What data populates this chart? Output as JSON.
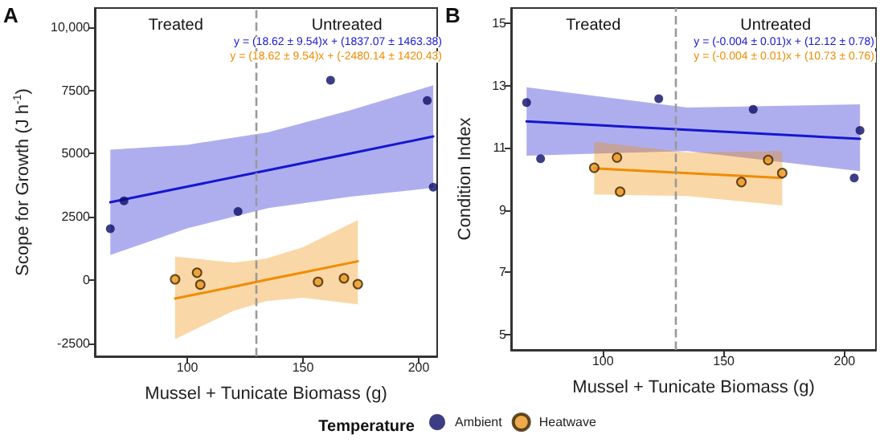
{
  "chart_data": [
    {
      "type": "scatter",
      "title": "A",
      "xlabel": "Mussel + Tunicate Biomass (g)",
      "ylabel": "Scope for Growth (J h$^{-1}$)",
      "legend_title": "Temperature",
      "legend": "bottom",
      "grid": false,
      "xlim": [
        60,
        208
      ],
      "xticks": [
        100,
        150,
        200
      ],
      "ylim": [
        -3000,
        10750
      ],
      "yticks": [
        -2500,
        0,
        2500,
        5000,
        7500,
        {
          "value": 10000,
          "label": "10,000"
        }
      ],
      "ref_lines": [
        {
          "axis": "x",
          "value": 130,
          "label": null,
          "color": "#999999",
          "line_style": "dashed"
        }
      ],
      "annotations": [
        "Treated",
        "Untreated",
        "y = (18.62 ± 9.54)x + (1837.07 ± 1463.38)",
        "y = (18.62 ± 9.54)x + (-2480.14 ± 1420.43)"
      ],
      "series": [
        {
          "name": "Ambient",
          "marker": "circle",
          "color": "#0d0d66",
          "x": [
            66.7,
            72.6,
            121.9,
            161.9,
            203.7,
            206.3
          ],
          "values": [
            2040,
            3140,
            2720,
            7900,
            7100,
            3680
          ]
        },
        {
          "name": "Heatwave",
          "marker": "circle",
          "color": "#e8961e",
          "x": [
            94.7,
            104.2,
            105.6,
            156.5,
            167.7,
            173.7
          ],
          "values": [
            40,
            300,
            -170,
            -60,
            80,
            -150
          ]
        },
        {
          "type": "line",
          "color": "#1616d0",
          "x": [
            66.7,
            100,
            135,
            170,
            206.3
          ],
          "values": [
            3080,
            3700,
            4350,
            5000,
            5680
          ],
          "lower": [
            1000,
            2050,
            2850,
            3300,
            3650
          ],
          "upper": [
            5160,
            5350,
            5850,
            6700,
            7700
          ]
        },
        {
          "type": "line",
          "color": "#f08c00",
          "x": [
            94.7,
            120,
            134,
            150,
            173.7
          ],
          "values": [
            -720,
            -250,
            20,
            310,
            750
          ],
          "lower": [
            -2320,
            -1200,
            -820,
            -690,
            -950
          ],
          "upper": [
            940,
            700,
            860,
            1310,
            2380
          ]
        }
      ]
    },
    {
      "type": "scatter",
      "title": "B",
      "xlabel": "Mussel + Tunicate Biomass (g)",
      "ylabel": "Condition Index",
      "grid": false,
      "xlim": [
        62,
        213
      ],
      "xticks": [
        100,
        150,
        200
      ],
      "ylim": [
        4.5,
        15.5
      ],
      "yticks": [
        5,
        7,
        9,
        11,
        13,
        15
      ],
      "ref_lines": [
        {
          "axis": "x",
          "value": 130,
          "label": null,
          "color": "#999999",
          "line_style": "dashed"
        }
      ],
      "annotations": [
        "Treated",
        "Untreated",
        "y = (-0.004 ± 0.01)x + (12.12 ± 0.78)",
        "y = (-0.004 ± 0.01)x + (10.73 ± 0.76)"
      ],
      "series": [
        {
          "marker": "circle",
          "color": "#0d0d66",
          "x": [
            68.4,
            74.2,
            123.1,
            162.2,
            204,
            206.4
          ],
          "values": [
            12.46,
            10.65,
            12.58,
            12.24,
            10.03,
            11.56
          ]
        },
        {
          "marker": "circle",
          "color": "#e8961e",
          "x": [
            96.4,
            105.8,
            107.1,
            157.3,
            168.4,
            174.2
          ],
          "values": [
            10.36,
            10.69,
            9.59,
            9.9,
            10.61,
            10.19
          ]
        },
        {
          "type": "line",
          "color": "#1616d0",
          "x": [
            68.4,
            135,
            206.4
          ],
          "values": [
            11.85,
            11.58,
            11.29
          ],
          "lower": [
            10.75,
            10.9,
            10.25
          ],
          "upper": [
            12.95,
            12.3,
            12.4
          ]
        },
        {
          "type": "line",
          "color": "#f08c00",
          "x": [
            96.4,
            135,
            174.2
          ],
          "values": [
            10.34,
            10.19,
            10.03
          ],
          "lower": [
            9.5,
            9.45,
            9.15
          ],
          "upper": [
            11.2,
            10.85,
            10.9
          ]
        }
      ]
    }
  ]
}
